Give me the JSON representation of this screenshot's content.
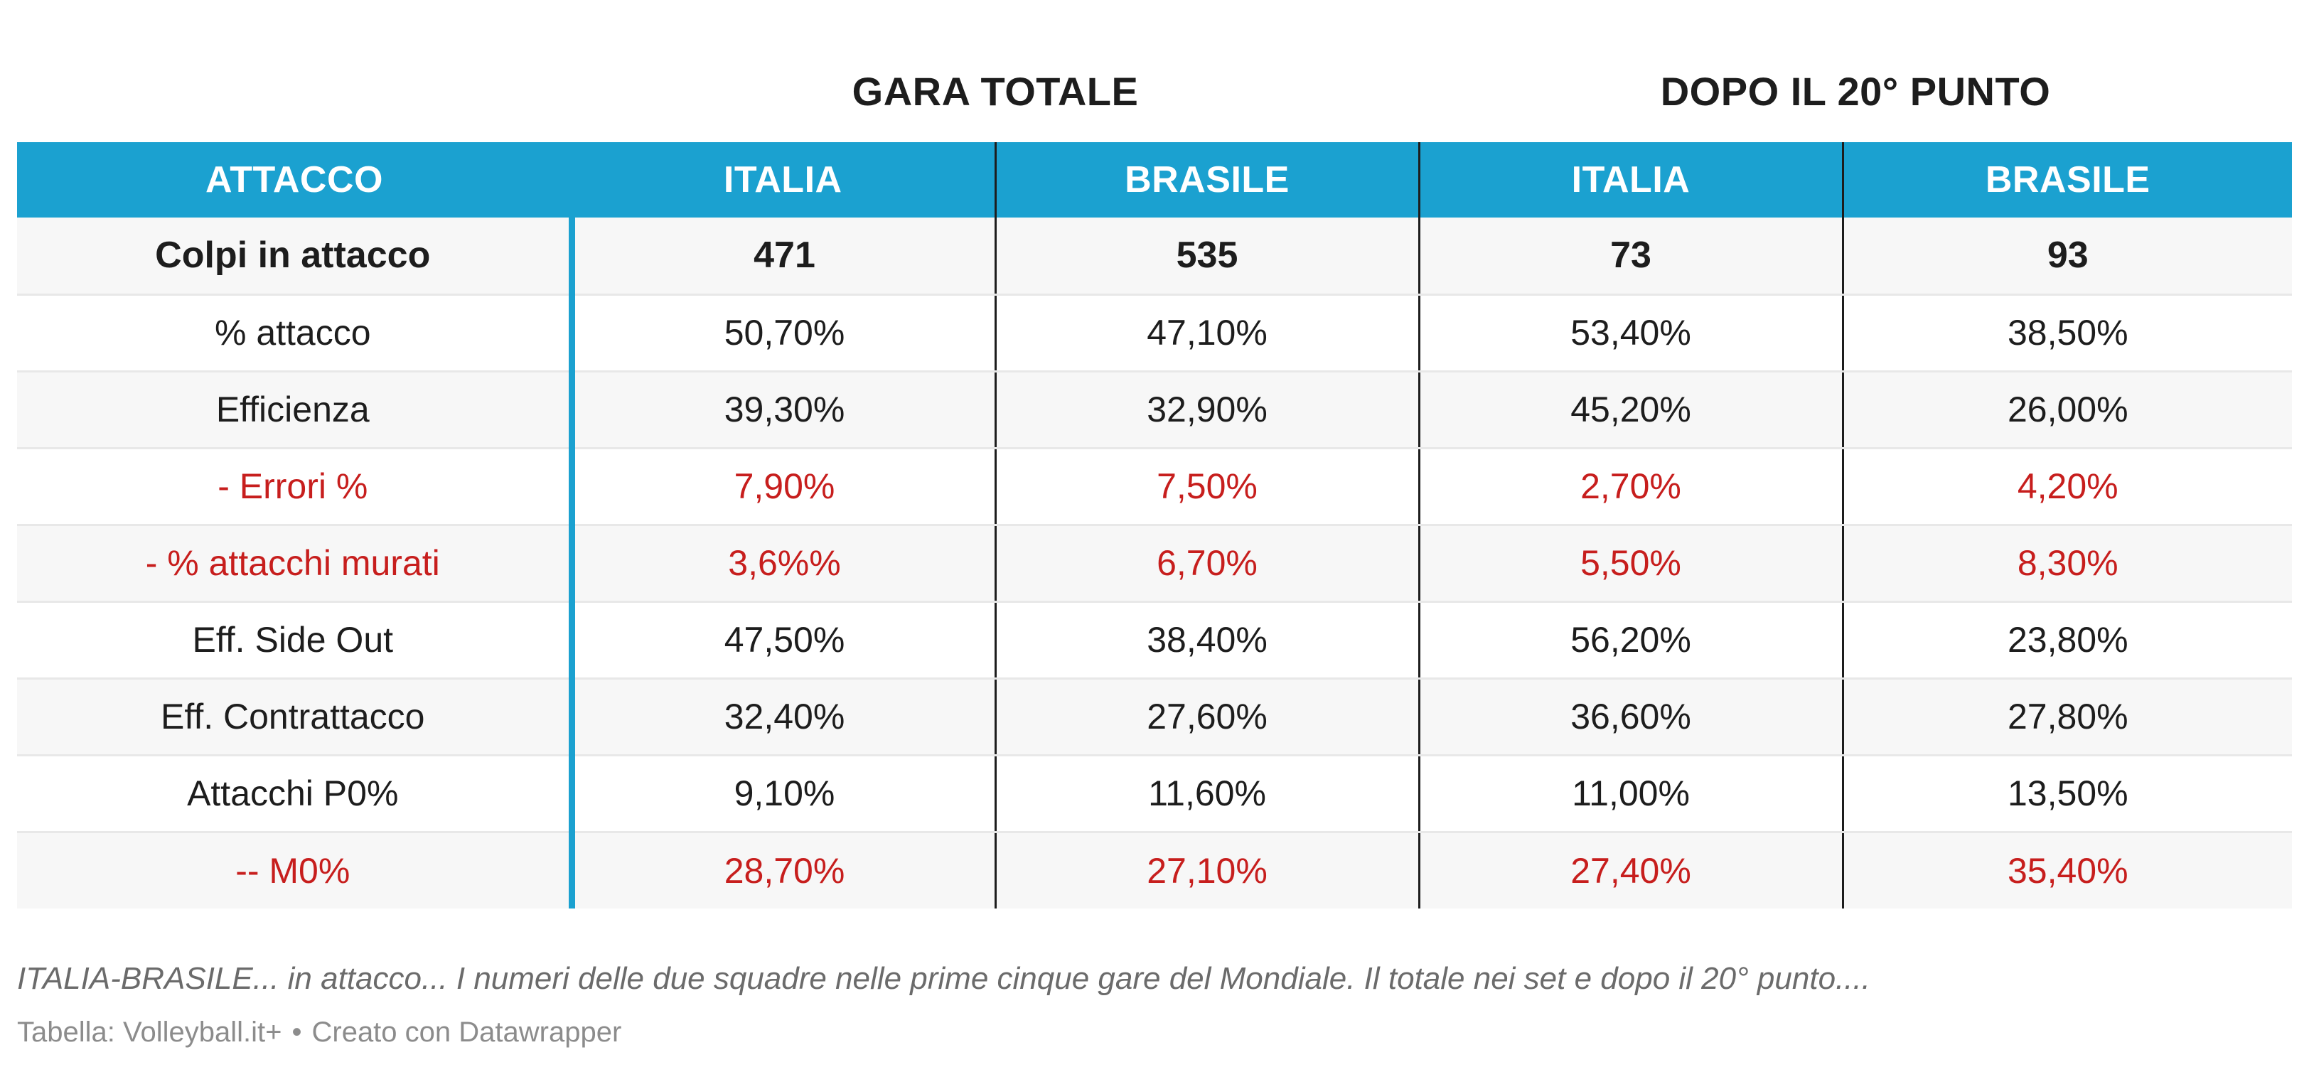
{
  "chart_data": {
    "type": "table",
    "column_groups": [
      {
        "label": "GARA TOTALE",
        "columns": [
          "ITALIA",
          "BRASILE"
        ]
      },
      {
        "label": "DOPO IL 20° PUNTO",
        "columns": [
          "ITALIA",
          "BRASILE"
        ]
      }
    ],
    "headers": [
      "ATTACCO",
      "ITALIA",
      "BRASILE",
      "ITALIA",
      "BRASILE"
    ],
    "rows": [
      {
        "label": "Colpi in attacco",
        "values": [
          "471",
          "535",
          "73",
          "93"
        ],
        "style": "bold"
      },
      {
        "label": "% attacco",
        "values": [
          "50,70%",
          "47,10%",
          "53,40%",
          "38,50%"
        ],
        "style": "normal"
      },
      {
        "label": "Efficienza",
        "values": [
          "39,30%",
          "32,90%",
          "45,20%",
          "26,00%"
        ],
        "style": "normal"
      },
      {
        "label": "- Errori %",
        "values": [
          "7,90%",
          "7,50%",
          "2,70%",
          "4,20%"
        ],
        "style": "red"
      },
      {
        "label": "- % attacchi murati",
        "values": [
          "3,6%%",
          "6,70%",
          "5,50%",
          "8,30%"
        ],
        "style": "red"
      },
      {
        "label": "Eff. Side Out",
        "values": [
          "47,50%",
          "38,40%",
          "56,20%",
          "23,80%"
        ],
        "style": "normal"
      },
      {
        "label": "Eff. Contrattacco",
        "values": [
          "32,40%",
          "27,60%",
          "36,60%",
          "27,80%"
        ],
        "style": "normal"
      },
      {
        "label": "Attacchi P0%",
        "values": [
          "9,10%",
          "11,60%",
          "11,00%",
          "13,50%"
        ],
        "style": "normal"
      },
      {
        "label": "-- M0%",
        "values": [
          "28,70%",
          "27,10%",
          "27,40%",
          "35,40%"
        ],
        "style": "red"
      }
    ]
  },
  "caption": "ITALIA-BRASILE... in attacco... I numeri delle due squadre nelle prime cinque gare del Mondiale. Il totale nei set e dopo il 20° punto....",
  "source": {
    "credit": "Tabella: Volleyball.it+",
    "separator": "•",
    "tool": "Creato con Datawrapper"
  },
  "colors": {
    "header_bg": "#1ba1d0",
    "header_text": "#ffffff",
    "negative_text": "#c71e1d",
    "row_alt_bg": "#f7f7f7",
    "column_separator": "#1d1d1d"
  }
}
